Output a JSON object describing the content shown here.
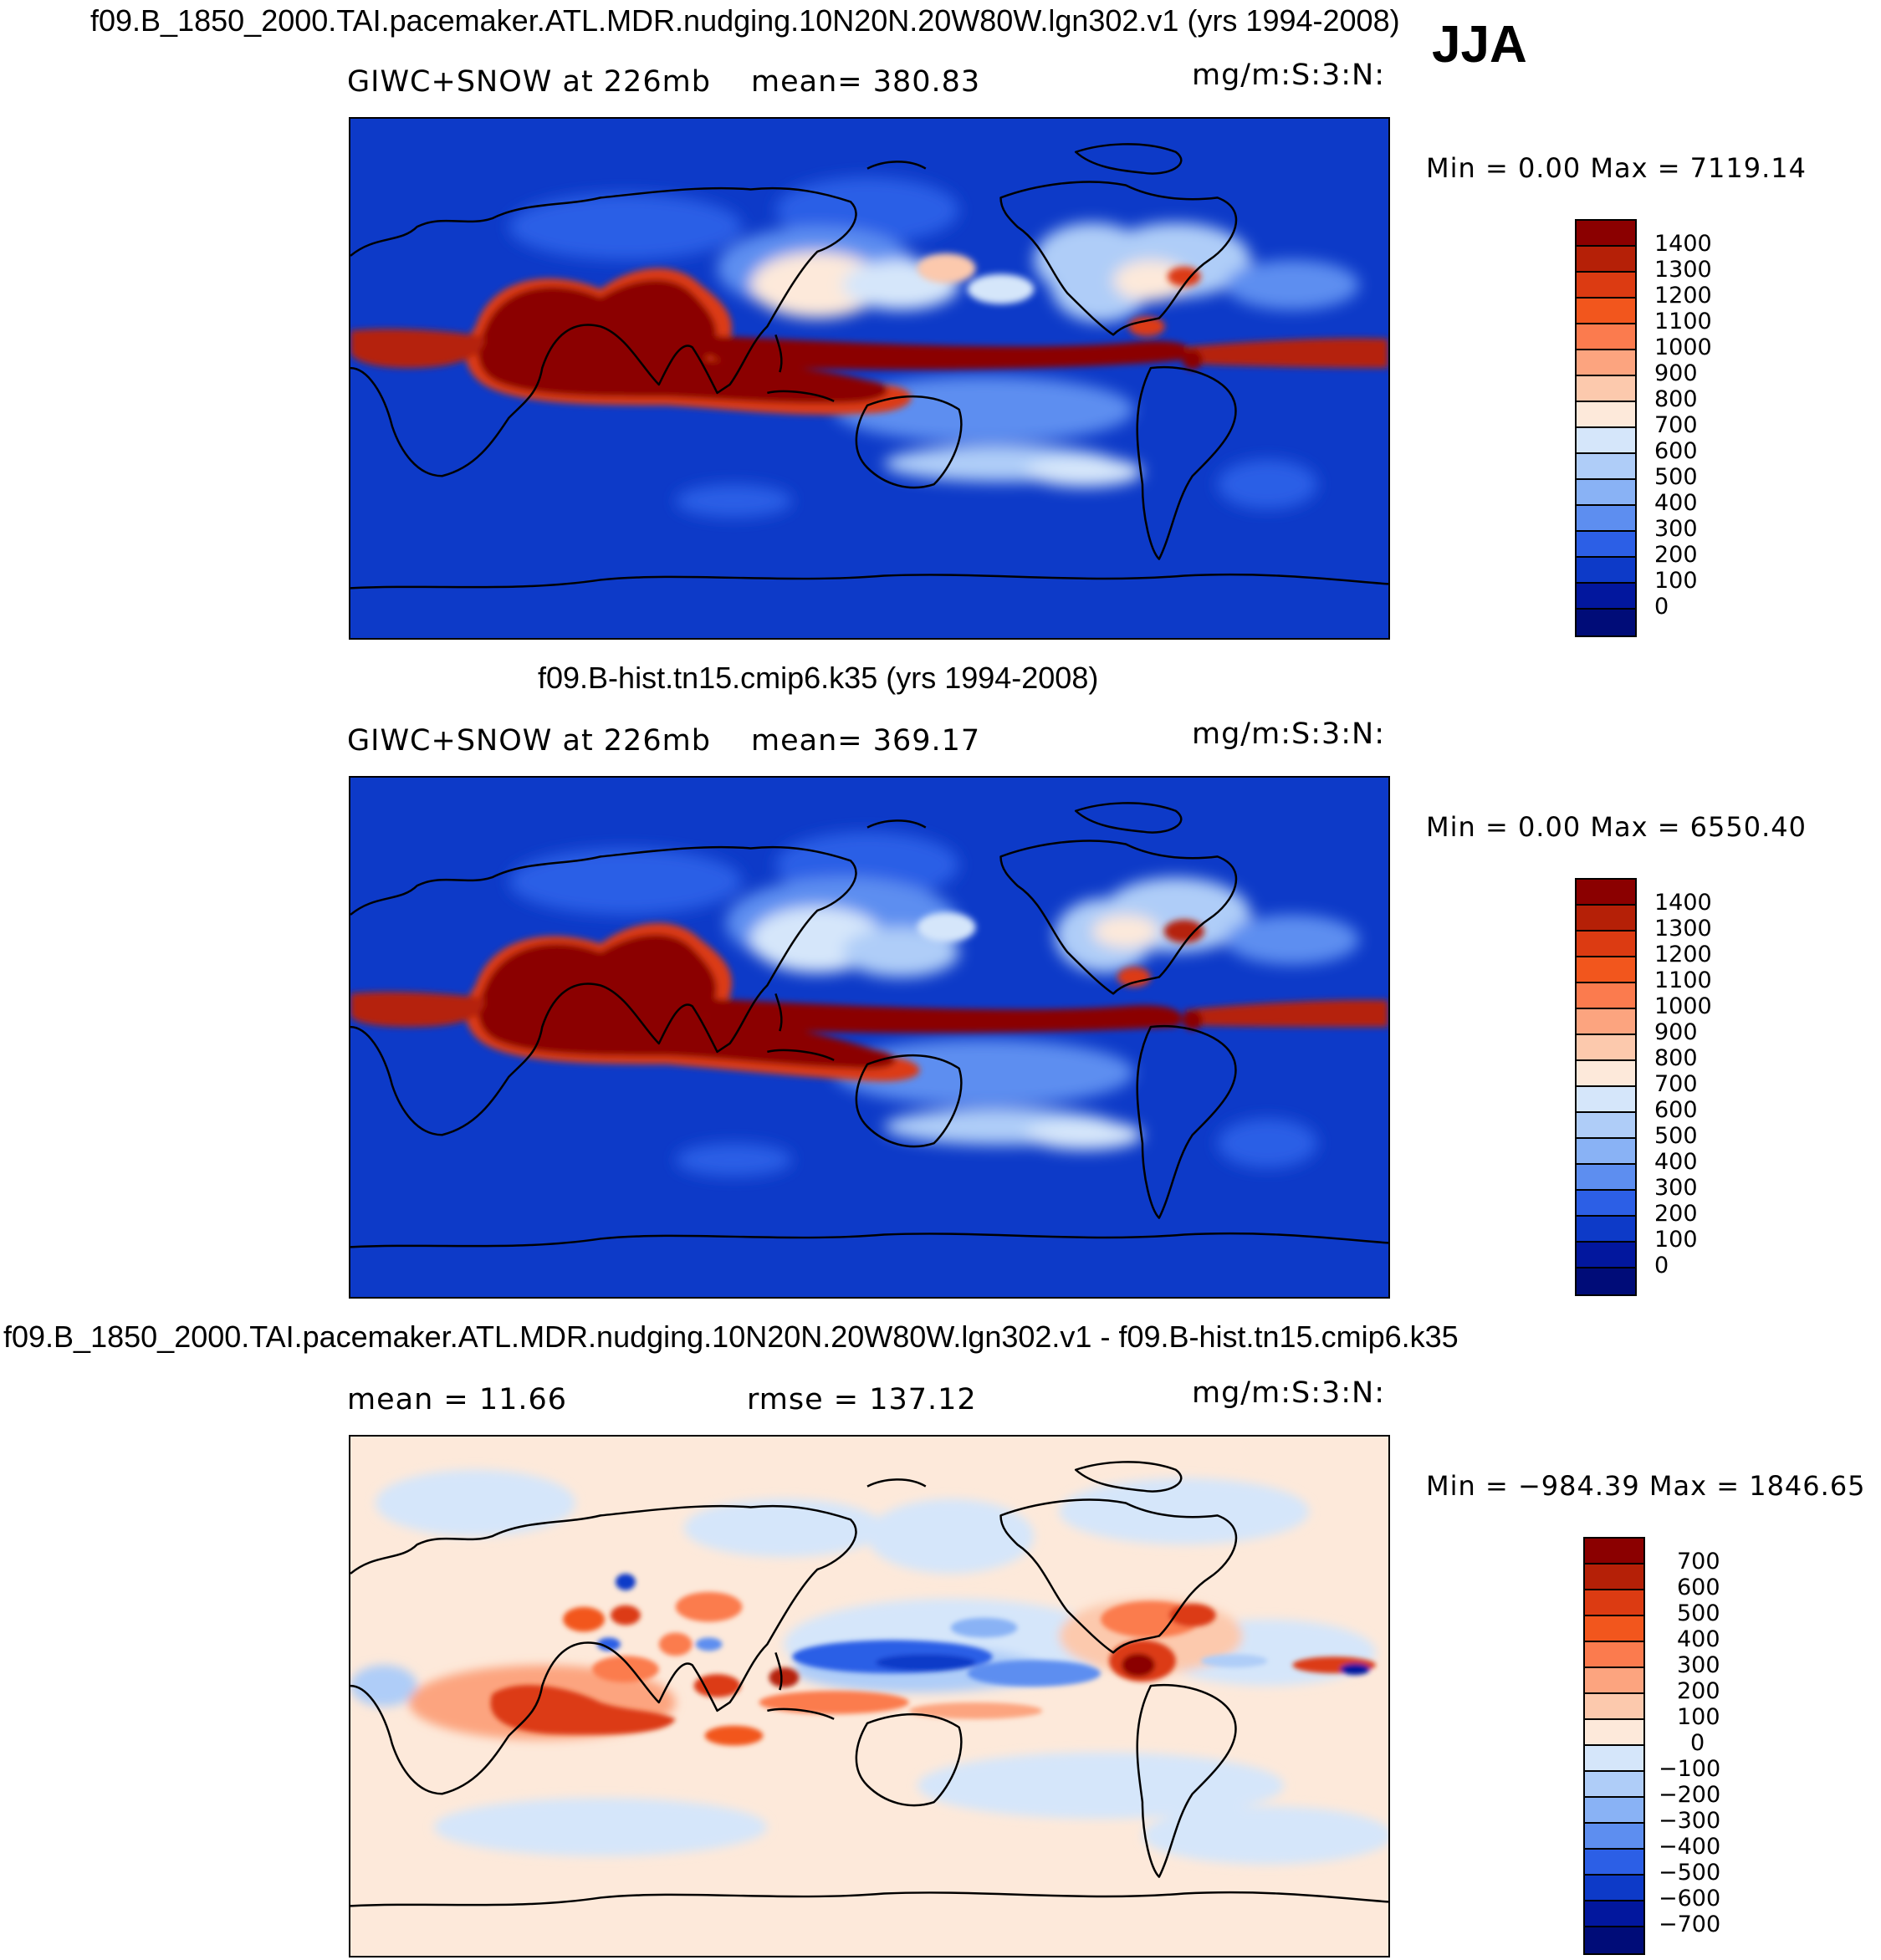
{
  "header": {
    "main_title": "f09.B_1850_2000.TAI.pacemaker.ATL.MDR.nudging.10N20N.20W80W.lgn302.v1 (yrs 1994-2008)",
    "season": "JJA"
  },
  "panels": [
    {
      "title": "",
      "left_label": "GIWC+SNOW at 226mb",
      "center_label": "mean=  380.83",
      "units": "mg/m:S:3:N:",
      "minmax": "Min =     0.00  Max =  7119.14",
      "colorbar": {
        "labels": [
          "1400",
          "1300",
          "1200",
          "1100",
          "1000",
          "900",
          "800",
          "700",
          "600",
          "500",
          "400",
          "300",
          "200",
          "100",
          "0"
        ],
        "colors": [
          "#8b0000",
          "#b52007",
          "#dc3b12",
          "#f2561d",
          "#fb7b4e",
          "#fca47f",
          "#fcc9ad",
          "#fde9da",
          "#d5e6fa",
          "#afcdf8",
          "#89b2f5",
          "#5d8ef0",
          "#2c5fe6",
          "#0d3ac8",
          "#02179e",
          "#000c78"
        ]
      }
    },
    {
      "title": "f09.B-hist.tn15.cmip6.k35 (yrs 1994-2008)",
      "left_label": "GIWC+SNOW at 226mb",
      "center_label": "mean=  369.17",
      "units": "mg/m:S:3:N:",
      "minmax": "Min =     0.00  Max =  6550.40",
      "colorbar": {
        "labels": [
          "1400",
          "1300",
          "1200",
          "1100",
          "1000",
          "900",
          "800",
          "700",
          "600",
          "500",
          "400",
          "300",
          "200",
          "100",
          "0"
        ],
        "colors": [
          "#8b0000",
          "#b52007",
          "#dc3b12",
          "#f2561d",
          "#fb7b4e",
          "#fca47f",
          "#fcc9ad",
          "#fde9da",
          "#d5e6fa",
          "#afcdf8",
          "#89b2f5",
          "#5d8ef0",
          "#2c5fe6",
          "#0d3ac8",
          "#02179e",
          "#000c78"
        ]
      }
    },
    {
      "title": "f09.B_1850_2000.TAI.pacemaker.ATL.MDR.nudging.10N20N.20W80W.lgn302.v1 - f09.B-hist.tn15.cmip6.k35",
      "left_label": "mean =    11.66",
      "center_label": "rmse  =  137.12",
      "units": "mg/m:S:3:N:",
      "minmax": "Min = −984.39  Max =  1846.65",
      "colorbar": {
        "labels": [
          "700",
          "600",
          "500",
          "400",
          "300",
          "200",
          "100",
          "0",
          "−100",
          "−200",
          "−300",
          "−400",
          "−500",
          "−600",
          "−700"
        ],
        "colors": [
          "#8b0000",
          "#b52007",
          "#dc3b12",
          "#f2561d",
          "#fb7b4e",
          "#fca47f",
          "#fcc9ad",
          "#fde9da",
          "#d5e6fa",
          "#afcdf8",
          "#89b2f5",
          "#5d8ef0",
          "#2c5fe6",
          "#0d3ac8",
          "#02179e",
          "#000c78"
        ]
      }
    }
  ]
}
